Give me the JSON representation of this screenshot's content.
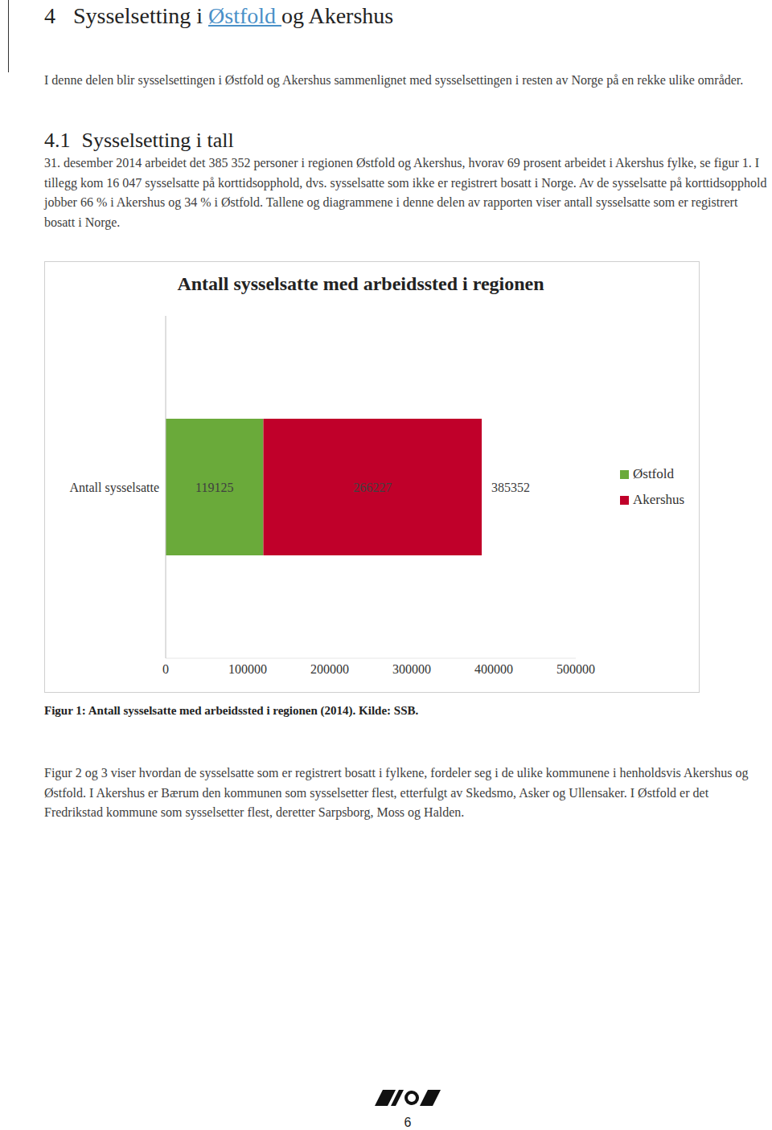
{
  "heading": {
    "number": "4",
    "parts": [
      "Sysselsetting i ",
      "Østfold ",
      "og Akershus"
    ]
  },
  "intro": "I denne delen blir sysselsettingen i Østfold og Akershus sammenlignet med sysselsettingen i resten av Norge på en rekke ulike områder.",
  "section": {
    "number": "4.1",
    "title": "Sysselsetting i tall"
  },
  "paragraph1": "31. desember 2014 arbeidet det 385 352 personer i regionen Østfold og Akershus, hvorav 69 prosent arbeidet i Akershus fylke, se figur 1. I tillegg kom 16 047 sysselsatte på korttidsopphold, dvs. sysselsatte som ikke er registrert bosatt i Norge. Av de sysselsatte på korttidsopphold jobber 66 % i Akershus og 34 % i Østfold. Tallene og diagrammene i denne delen av rapporten viser antall sysselsatte som er registrert bosatt i Norge.",
  "chart_data": {
    "type": "bar",
    "title": "Antall sysselsatte med arbeidssted i regionen",
    "orientation": "horizontal",
    "stacked": true,
    "categories": [
      "Antall sysselsatte"
    ],
    "series": [
      {
        "name": "Østfold",
        "color": "#6aaa3a",
        "values": [
          119125
        ]
      },
      {
        "name": "Akershus",
        "color": "#c0002a",
        "values": [
          266227
        ]
      }
    ],
    "totals": [
      385352
    ],
    "xlim": [
      0,
      500000
    ],
    "xticks": [
      0,
      100000,
      200000,
      300000,
      400000,
      500000
    ],
    "data_labels": true,
    "legend": "right",
    "grid": false
  },
  "caption": "Figur 1: Antall sysselsatte med arbeidssted i regionen (2014). Kilde: SSB.",
  "paragraph2": "Figur 2 og 3 viser hvordan de sysselsatte som er registrert bosatt i fylkene, fordeler seg i de ulike kommunene i henholdsvis Akershus og Østfold. I Akershus er Bærum den kommunen som sysselsetter flest, etterfulgt av Skedsmo, Asker og Ullensaker. I Østfold er det Fredrikstad kommune som sysselsetter flest, deretter Sarpsborg, Moss og Halden.",
  "page_number": "6"
}
